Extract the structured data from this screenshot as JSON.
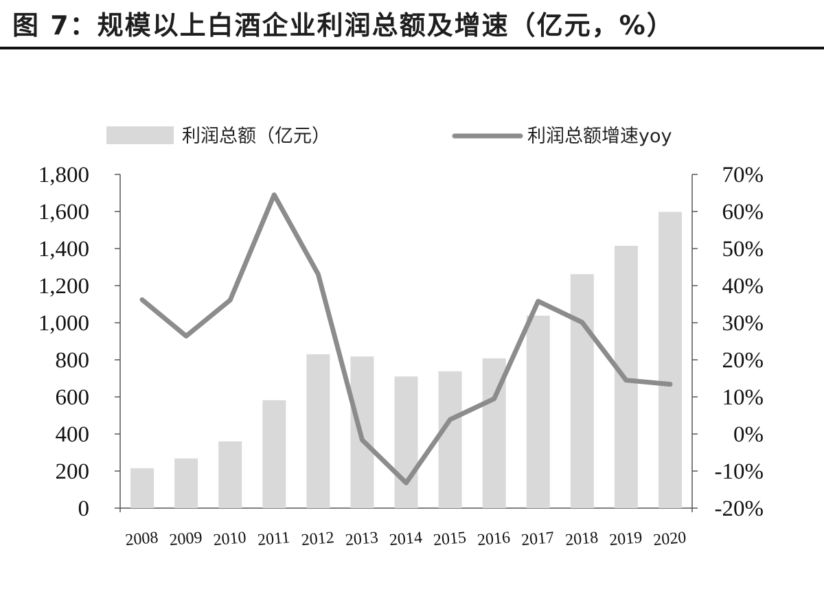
{
  "title": "图 7：规模以上白酒企业利润总额及增速（亿元，%）",
  "chart_data": {
    "type": "bar",
    "categories": [
      "2008",
      "2009",
      "2010",
      "2011",
      "2012",
      "2013",
      "2014",
      "2015",
      "2016",
      "2017",
      "2018",
      "2019",
      "2020"
    ],
    "series": [
      {
        "name": "利润总额（亿元）",
        "type": "bar",
        "axis": "left",
        "color": "#d9d9d9",
        "values": [
          215,
          268,
          360,
          582,
          830,
          818,
          710,
          738,
          808,
          1038,
          1262,
          1415,
          1598
        ]
      },
      {
        "name": "利润总额增速yoy",
        "type": "line",
        "axis": "right",
        "color": "#8c8c8c",
        "values": [
          36.2,
          26.4,
          36.1,
          64.5,
          43.1,
          -1.6,
          -13.2,
          3.9,
          9.5,
          35.8,
          30.1,
          14.5,
          13.4
        ]
      }
    ],
    "yleft": {
      "ylim": [
        0,
        1800
      ],
      "ticks": [
        "0",
        "200",
        "400",
        "600",
        "800",
        "1,000",
        "1,200",
        "1,400",
        "1,600",
        "1,800"
      ]
    },
    "yright": {
      "ylim": [
        -20,
        70
      ],
      "ticks": [
        "-20%",
        "-10%",
        "0%",
        "10%",
        "20%",
        "30%",
        "40%",
        "50%",
        "60%",
        "70%"
      ]
    },
    "legend": "top",
    "grid": false
  }
}
